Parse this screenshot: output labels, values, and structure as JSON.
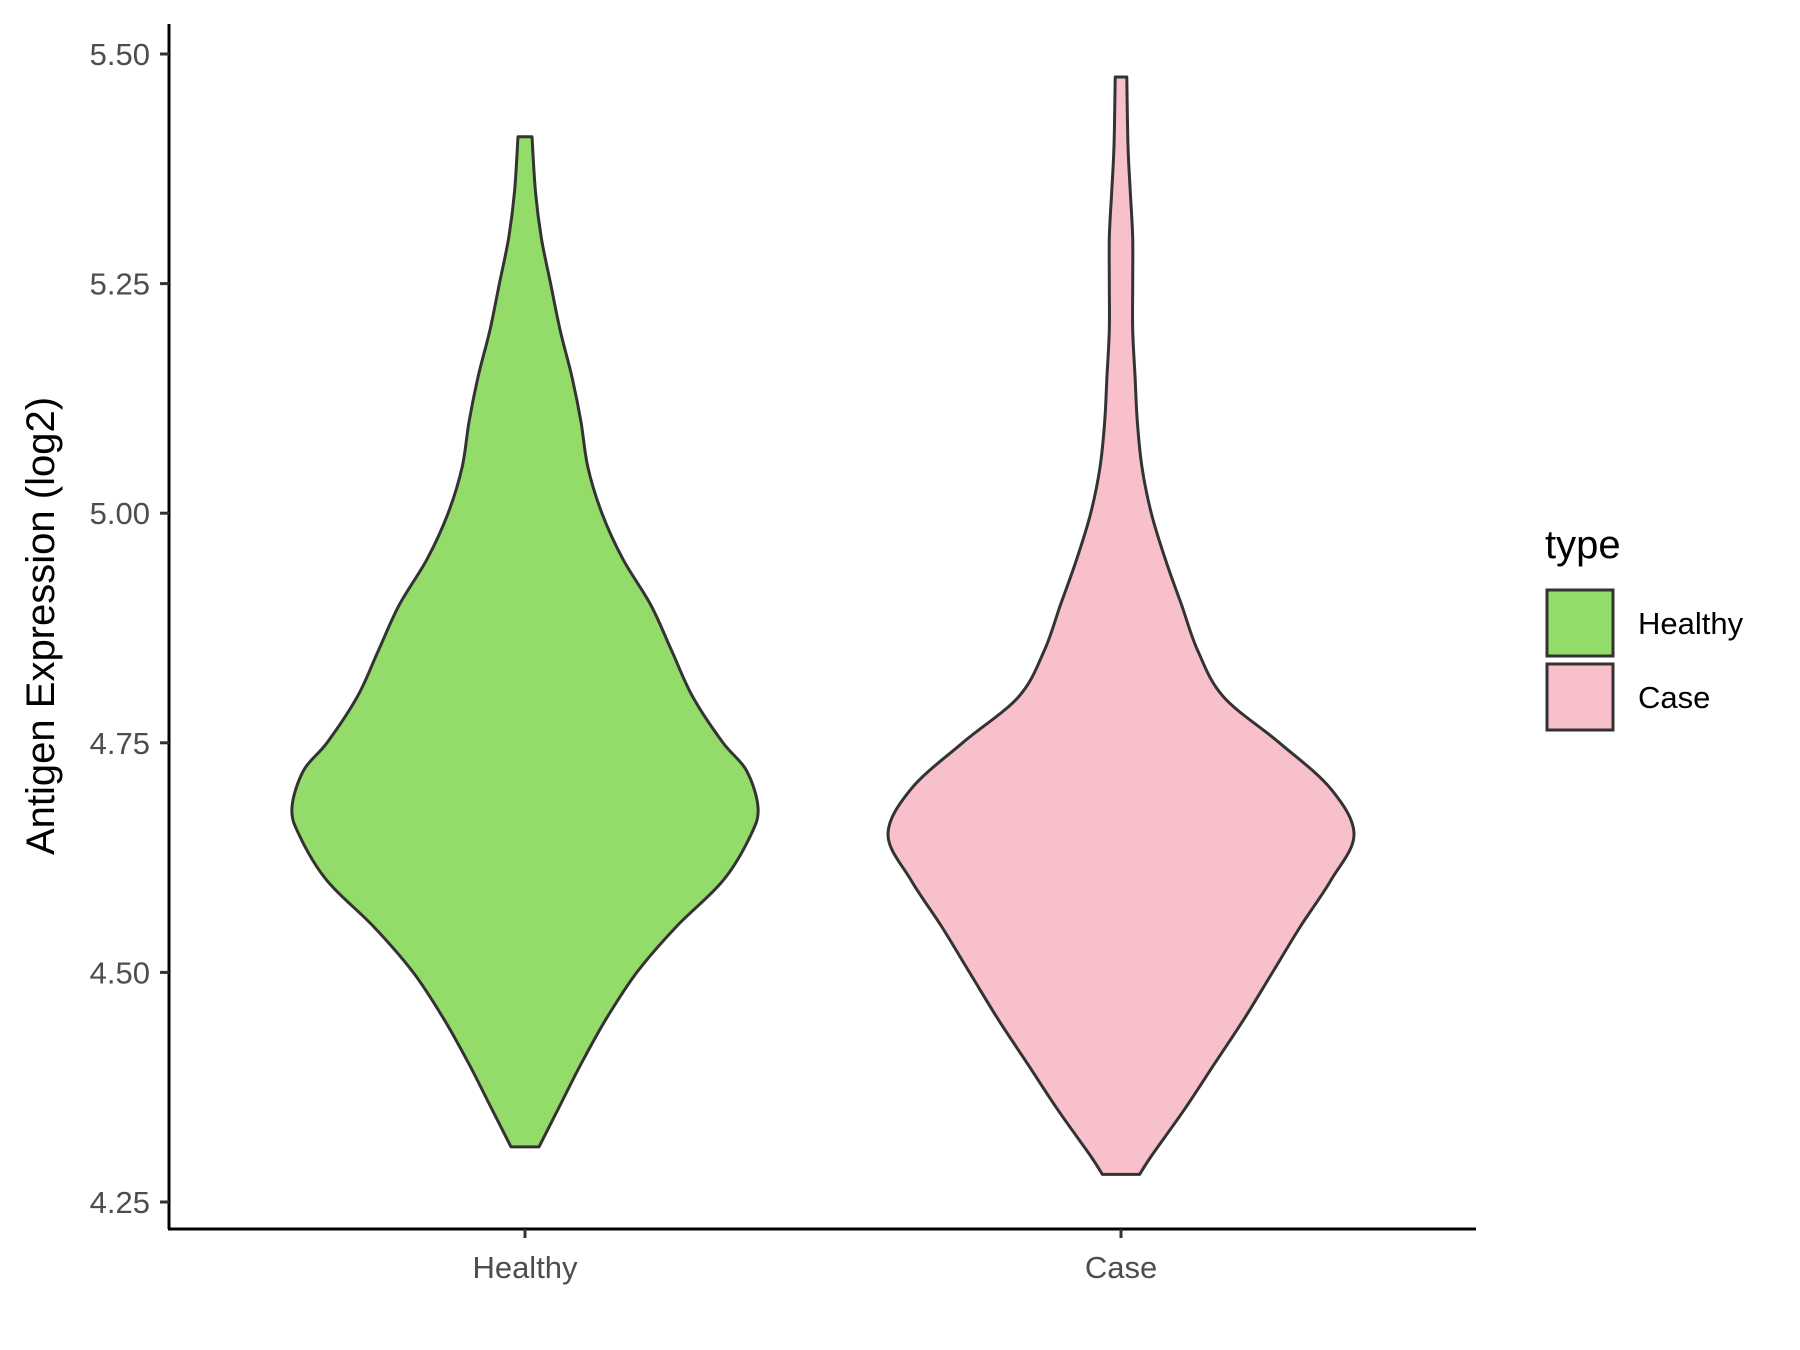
{
  "chart_data": {
    "type": "violin",
    "ylabel": "Antigen Expression (log2)",
    "xlabel": "",
    "ylim": [
      4.225,
      5.535
    ],
    "yticks": [
      "4.25",
      "4.50",
      "4.75",
      "5.00",
      "5.25",
      "5.50"
    ],
    "categories": [
      "Healthy",
      "Case"
    ],
    "legend": {
      "title": "type",
      "position": "right",
      "entries": [
        "Healthy",
        "Case"
      ]
    },
    "grid": false,
    "series": [
      {
        "name": "Healthy",
        "color": "#93dc6a",
        "min": 4.31,
        "max": 5.41,
        "profile": [
          [
            4.31,
            0.06
          ],
          [
            4.35,
            0.14
          ],
          [
            4.4,
            0.24
          ],
          [
            4.45,
            0.35
          ],
          [
            4.5,
            0.48
          ],
          [
            4.55,
            0.65
          ],
          [
            4.6,
            0.85
          ],
          [
            4.65,
            0.97
          ],
          [
            4.68,
            1.0
          ],
          [
            4.72,
            0.95
          ],
          [
            4.75,
            0.85
          ],
          [
            4.8,
            0.72
          ],
          [
            4.85,
            0.63
          ],
          [
            4.9,
            0.54
          ],
          [
            4.95,
            0.42
          ],
          [
            5.0,
            0.33
          ],
          [
            5.05,
            0.27
          ],
          [
            5.1,
            0.24
          ],
          [
            5.15,
            0.2
          ],
          [
            5.2,
            0.15
          ],
          [
            5.25,
            0.11
          ],
          [
            5.3,
            0.07
          ],
          [
            5.35,
            0.045
          ],
          [
            5.41,
            0.03
          ]
        ]
      },
      {
        "name": "Case",
        "color": "#f8c0cb",
        "min": 4.28,
        "max": 5.475,
        "profile": [
          [
            4.28,
            0.08
          ],
          [
            4.3,
            0.13
          ],
          [
            4.35,
            0.27
          ],
          [
            4.4,
            0.4
          ],
          [
            4.45,
            0.53
          ],
          [
            4.5,
            0.65
          ],
          [
            4.55,
            0.77
          ],
          [
            4.6,
            0.9
          ],
          [
            4.65,
            1.0
          ],
          [
            4.7,
            0.9
          ],
          [
            4.75,
            0.68
          ],
          [
            4.8,
            0.44
          ],
          [
            4.85,
            0.33
          ],
          [
            4.9,
            0.26
          ],
          [
            4.95,
            0.19
          ],
          [
            5.0,
            0.13
          ],
          [
            5.05,
            0.09
          ],
          [
            5.1,
            0.07
          ],
          [
            5.15,
            0.06
          ],
          [
            5.2,
            0.05
          ],
          [
            5.25,
            0.05
          ],
          [
            5.3,
            0.05
          ],
          [
            5.35,
            0.04
          ],
          [
            5.4,
            0.03
          ],
          [
            5.475,
            0.025
          ]
        ]
      }
    ]
  }
}
